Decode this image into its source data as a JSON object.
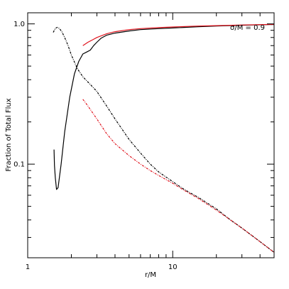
{
  "chart_data": {
    "type": "line",
    "title": "",
    "xlabel": "r/M",
    "ylabel": "Fraction of Total Flux",
    "annotation": "σ/M = 0.9",
    "xscale": "log",
    "yscale": "log",
    "xlim": [
      1,
      50
    ],
    "ylim": [
      0.0215,
      1.2
    ],
    "xticks": [
      {
        "value": 1,
        "label": "1"
      },
      {
        "value": 10,
        "label": "10"
      }
    ],
    "yticks": [
      {
        "value": 0.1,
        "label": "0.1"
      },
      {
        "value": 1.0,
        "label": "1.0"
      }
    ],
    "grid": false,
    "legend": "none",
    "colors": {
      "black": "#000000",
      "red": "#e0141e"
    },
    "series": [
      {
        "color": "black",
        "style": "solid",
        "x": [
          1.52,
          1.53,
          1.55,
          1.58,
          1.62,
          1.7,
          1.8,
          1.95,
          2.1,
          2.25,
          2.4,
          2.55,
          2.7,
          2.85,
          3.0,
          3.2,
          3.5,
          4.0,
          5.0,
          6.0,
          8.0,
          10.0,
          15.0,
          20.0,
          30.0,
          40.0,
          50.0
        ],
        "y": [
          0.127,
          0.098,
          0.08,
          0.066,
          0.068,
          0.1,
          0.17,
          0.3,
          0.44,
          0.54,
          0.61,
          0.63,
          0.65,
          0.7,
          0.74,
          0.79,
          0.83,
          0.86,
          0.89,
          0.91,
          0.925,
          0.935,
          0.955,
          0.965,
          0.978,
          0.985,
          0.99
        ]
      },
      {
        "color": "red",
        "style": "solid",
        "x": [
          2.4,
          2.6,
          2.8,
          3.0,
          3.5,
          4.0,
          5.0,
          6.0,
          8.0,
          10.0,
          15.0,
          20.0,
          30.0,
          40.0,
          50.0
        ],
        "y": [
          0.7,
          0.74,
          0.77,
          0.8,
          0.85,
          0.88,
          0.91,
          0.925,
          0.94,
          0.95,
          0.965,
          0.972,
          0.982,
          0.988,
          0.992
        ]
      },
      {
        "color": "black",
        "style": "dash-dot",
        "x": [
          1.5,
          1.55,
          1.6,
          1.65,
          1.72,
          1.8,
          1.9,
          2.0,
          2.2,
          2.4,
          2.7,
          3.0,
          3.5,
          4.0,
          5.0,
          6.0,
          7.0,
          8.0,
          10.0,
          12.0,
          15.0,
          20.0,
          25.0,
          30.0,
          40.0,
          50.0
        ],
        "y": [
          0.87,
          0.93,
          0.945,
          0.93,
          0.88,
          0.8,
          0.7,
          0.6,
          0.48,
          0.42,
          0.37,
          0.33,
          0.26,
          0.21,
          0.15,
          0.12,
          0.1,
          0.088,
          0.075,
          0.066,
          0.058,
          0.048,
          0.04,
          0.035,
          0.028,
          0.0235
        ]
      },
      {
        "color": "red",
        "style": "dash-dot",
        "x": [
          2.4,
          2.6,
          3.0,
          3.5,
          4.0,
          5.0,
          6.0,
          7.0,
          8.0,
          10.0,
          12.0,
          15.0,
          20.0,
          25.0,
          30.0,
          40.0,
          50.0
        ],
        "y": [
          0.29,
          0.26,
          0.21,
          0.165,
          0.14,
          0.115,
          0.1,
          0.09,
          0.083,
          0.073,
          0.065,
          0.057,
          0.047,
          0.04,
          0.035,
          0.028,
          0.0235
        ]
      }
    ]
  }
}
